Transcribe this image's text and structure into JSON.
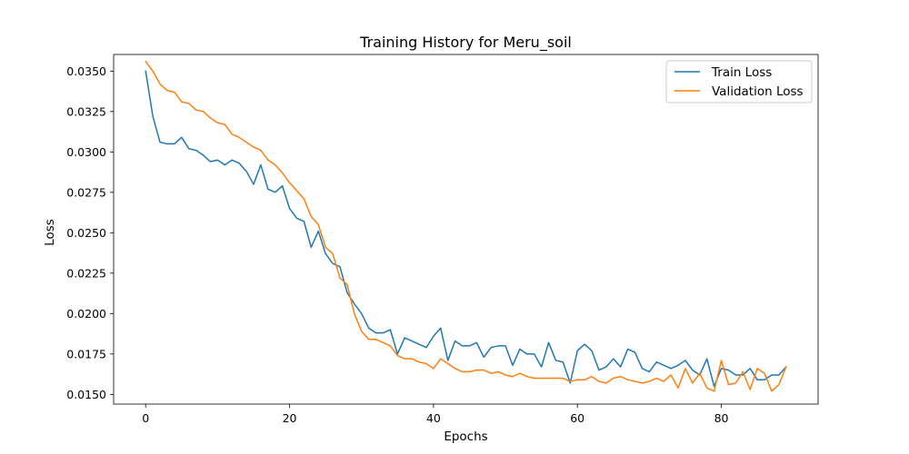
{
  "chart_data": {
    "type": "line",
    "title": "Training History for Meru_soil",
    "xlabel": "Epochs",
    "ylabel": "Loss",
    "xlim": [
      -4.45,
      93.45
    ],
    "ylim": [
      0.0144,
      0.03603
    ],
    "xticks": [
      0,
      20,
      40,
      60,
      80
    ],
    "yticks": [
      0.015,
      0.0175,
      0.02,
      0.0225,
      0.025,
      0.0275,
      0.03,
      0.0325,
      0.035
    ],
    "ytick_labels": [
      "0.0150",
      "0.0175",
      "0.0200",
      "0.0225",
      "0.0250",
      "0.0275",
      "0.0300",
      "0.0325",
      "0.0350"
    ],
    "grid": false,
    "legend_position": "top-right",
    "series": [
      {
        "name": "Train Loss",
        "color": "#1f77b4",
        "x": [
          0,
          1,
          2,
          3,
          4,
          5,
          6,
          7,
          8,
          9,
          10,
          11,
          12,
          13,
          14,
          15,
          16,
          17,
          18,
          19,
          20,
          21,
          22,
          23,
          24,
          25,
          26,
          27,
          28,
          29,
          30,
          31,
          32,
          33,
          34,
          35,
          36,
          37,
          38,
          39,
          40,
          41,
          42,
          43,
          44,
          45,
          46,
          47,
          48,
          49,
          50,
          51,
          52,
          53,
          54,
          55,
          56,
          57,
          58,
          59,
          60,
          61,
          62,
          63,
          64,
          65,
          66,
          67,
          68,
          69,
          70,
          71,
          72,
          73,
          74,
          75,
          76,
          77,
          78,
          79,
          80,
          81,
          82,
          83,
          84,
          85,
          86,
          87,
          88,
          89
        ],
        "values": [
          0.035,
          0.0322,
          0.0306,
          0.0305,
          0.0305,
          0.0309,
          0.0302,
          0.0301,
          0.0298,
          0.0294,
          0.0295,
          0.0292,
          0.0295,
          0.0293,
          0.0288,
          0.028,
          0.0292,
          0.0277,
          0.0275,
          0.0279,
          0.0265,
          0.0259,
          0.0257,
          0.0241,
          0.0251,
          0.0237,
          0.0231,
          0.0229,
          0.0213,
          0.0206,
          0.02,
          0.0191,
          0.0188,
          0.0188,
          0.019,
          0.0175,
          0.0185,
          0.0183,
          0.0181,
          0.0179,
          0.0186,
          0.0191,
          0.0171,
          0.0183,
          0.018,
          0.018,
          0.0182,
          0.0173,
          0.0179,
          0.018,
          0.018,
          0.0168,
          0.0178,
          0.0175,
          0.0175,
          0.0167,
          0.0182,
          0.0171,
          0.017,
          0.0157,
          0.0177,
          0.0181,
          0.0177,
          0.0165,
          0.0167,
          0.0172,
          0.0167,
          0.0178,
          0.0176,
          0.0166,
          0.0164,
          0.017,
          0.0168,
          0.0166,
          0.0168,
          0.0171,
          0.0165,
          0.0162,
          0.0172,
          0.0155,
          0.0166,
          0.0165,
          0.0162,
          0.0162,
          0.0166,
          0.0159,
          0.0159,
          0.0162,
          0.0162,
          0.0167
        ]
      },
      {
        "name": "Validation Loss",
        "color": "#ff7f0e",
        "x": [
          0,
          1,
          2,
          3,
          4,
          5,
          6,
          7,
          8,
          9,
          10,
          11,
          12,
          13,
          14,
          15,
          16,
          17,
          18,
          19,
          20,
          21,
          22,
          23,
          24,
          25,
          26,
          27,
          28,
          29,
          30,
          31,
          32,
          33,
          34,
          35,
          36,
          37,
          38,
          39,
          40,
          41,
          42,
          43,
          44,
          45,
          46,
          47,
          48,
          49,
          50,
          51,
          52,
          53,
          54,
          55,
          56,
          57,
          58,
          59,
          60,
          61,
          62,
          63,
          64,
          65,
          66,
          67,
          68,
          69,
          70,
          71,
          72,
          73,
          74,
          75,
          76,
          77,
          78,
          79,
          80,
          81,
          82,
          83,
          84,
          85,
          86,
          87,
          88,
          89
        ],
        "values": [
          0.0356,
          0.035,
          0.0342,
          0.0338,
          0.0337,
          0.0331,
          0.033,
          0.0326,
          0.0325,
          0.0321,
          0.0318,
          0.0317,
          0.0311,
          0.0309,
          0.0306,
          0.0303,
          0.0301,
          0.0295,
          0.0292,
          0.0287,
          0.0281,
          0.0276,
          0.0271,
          0.026,
          0.0255,
          0.0241,
          0.0237,
          0.0222,
          0.0218,
          0.02,
          0.0189,
          0.0184,
          0.0184,
          0.0182,
          0.018,
          0.0174,
          0.0172,
          0.0172,
          0.017,
          0.0169,
          0.0166,
          0.0172,
          0.0169,
          0.0166,
          0.0164,
          0.0164,
          0.0165,
          0.0165,
          0.0163,
          0.0164,
          0.0162,
          0.0161,
          0.0163,
          0.0161,
          0.016,
          0.016,
          0.016,
          0.016,
          0.016,
          0.0158,
          0.0159,
          0.0159,
          0.0161,
          0.0158,
          0.0157,
          0.016,
          0.0161,
          0.0159,
          0.0158,
          0.0157,
          0.0158,
          0.016,
          0.0158,
          0.0162,
          0.0154,
          0.0166,
          0.0157,
          0.0163,
          0.0154,
          0.0152,
          0.0171,
          0.0156,
          0.0157,
          0.0164,
          0.0153,
          0.0166,
          0.0163,
          0.0152,
          0.0156,
          0.0167
        ]
      }
    ]
  }
}
